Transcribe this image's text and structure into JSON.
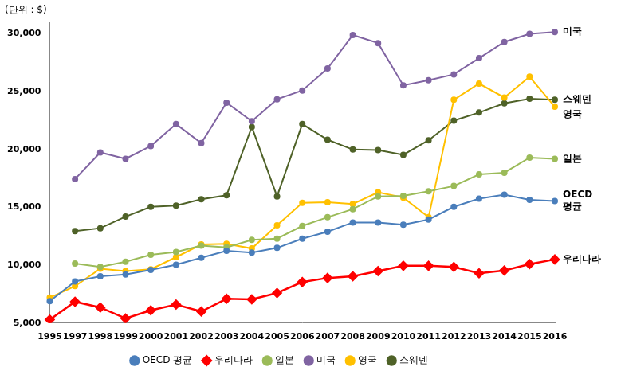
{
  "chart_data": {
    "type": "line",
    "ylabel": "(단위 : $)",
    "categories": [
      "1995",
      "1997",
      "1998",
      "1999",
      "2000",
      "2001",
      "2002",
      "2003",
      "2004",
      "2005",
      "2006",
      "2007",
      "2008",
      "2009",
      "2010",
      "2011",
      "2012",
      "2013",
      "2014",
      "2015",
      "2016"
    ],
    "series": [
      {
        "name": "OECD 평균",
        "color": "#4a7ebb",
        "marker": "circle",
        "values": [
          6900,
          8600,
          9050,
          9200,
          9600,
          10050,
          10650,
          11250,
          11100,
          11500,
          12300,
          12900,
          13700,
          13700,
          13500,
          13950,
          15050,
          15750,
          16100,
          15650,
          15550
        ]
      },
      {
        "name": "우리나라",
        "color": "#ff0000",
        "marker": "diamond",
        "values": [
          5300,
          6850,
          6350,
          5400,
          6100,
          6600,
          6000,
          7100,
          7050,
          7600,
          8550,
          8900,
          9050,
          9500,
          9950,
          9950,
          9850,
          9300,
          9550,
          10100,
          10500
        ]
      },
      {
        "name": "일본",
        "color": "#9bbb59",
        "marker": "circle",
        "values": [
          null,
          10150,
          9850,
          10300,
          10900,
          11150,
          11700,
          11550,
          12200,
          12300,
          13400,
          14150,
          14850,
          15950,
          16000,
          16400,
          16850,
          17850,
          18000,
          19300,
          19200
        ]
      },
      {
        "name": "미국",
        "color": "#8064a2",
        "marker": "circle",
        "values": [
          null,
          17450,
          19750,
          19200,
          20300,
          22200,
          20550,
          24050,
          22450,
          24350,
          25100,
          27000,
          29900,
          29200,
          25550,
          26000,
          26500,
          27900,
          29300,
          30000,
          30150
        ]
      },
      {
        "name": "영국",
        "color": "#ffc000",
        "marker": "circle",
        "values": [
          7200,
          8200,
          9700,
          9500,
          9650,
          10700,
          11800,
          11850,
          11450,
          13450,
          15400,
          15450,
          15300,
          16300,
          15850,
          14150,
          24300,
          25700,
          24500,
          26300,
          23700
        ]
      },
      {
        "name": "스웨덴",
        "color": "#4f6228",
        "marker": "circle",
        "values": [
          null,
          12950,
          13200,
          14200,
          15050,
          15150,
          15700,
          16050,
          21950,
          15950,
          22200,
          20850,
          20000,
          19950,
          19550,
          20800,
          22500,
          23200,
          24000,
          24400,
          24300
        ]
      }
    ],
    "annotations": [
      {
        "text": "미국",
        "series": "미국"
      },
      {
        "text": "스웨덴",
        "series": "스웨덴"
      },
      {
        "text": "영국",
        "series": "영국"
      },
      {
        "text": "일본",
        "series": "일본"
      },
      {
        "text": "OECD 평균",
        "series": "OECD 평균"
      },
      {
        "text": "우리나라",
        "series": "우리나라"
      }
    ],
    "ylim": [
      5000,
      31000
    ],
    "yticks": [
      {
        "value": 5000,
        "label": "5,000"
      },
      {
        "value": 10000,
        "label": "10,000"
      },
      {
        "value": 15000,
        "label": "15,000"
      },
      {
        "value": 20000,
        "label": "20,000"
      },
      {
        "value": 25000,
        "label": "25,000"
      },
      {
        "value": 30000,
        "label": "30,000"
      }
    ],
    "grid": false,
    "legend": "bottom"
  }
}
